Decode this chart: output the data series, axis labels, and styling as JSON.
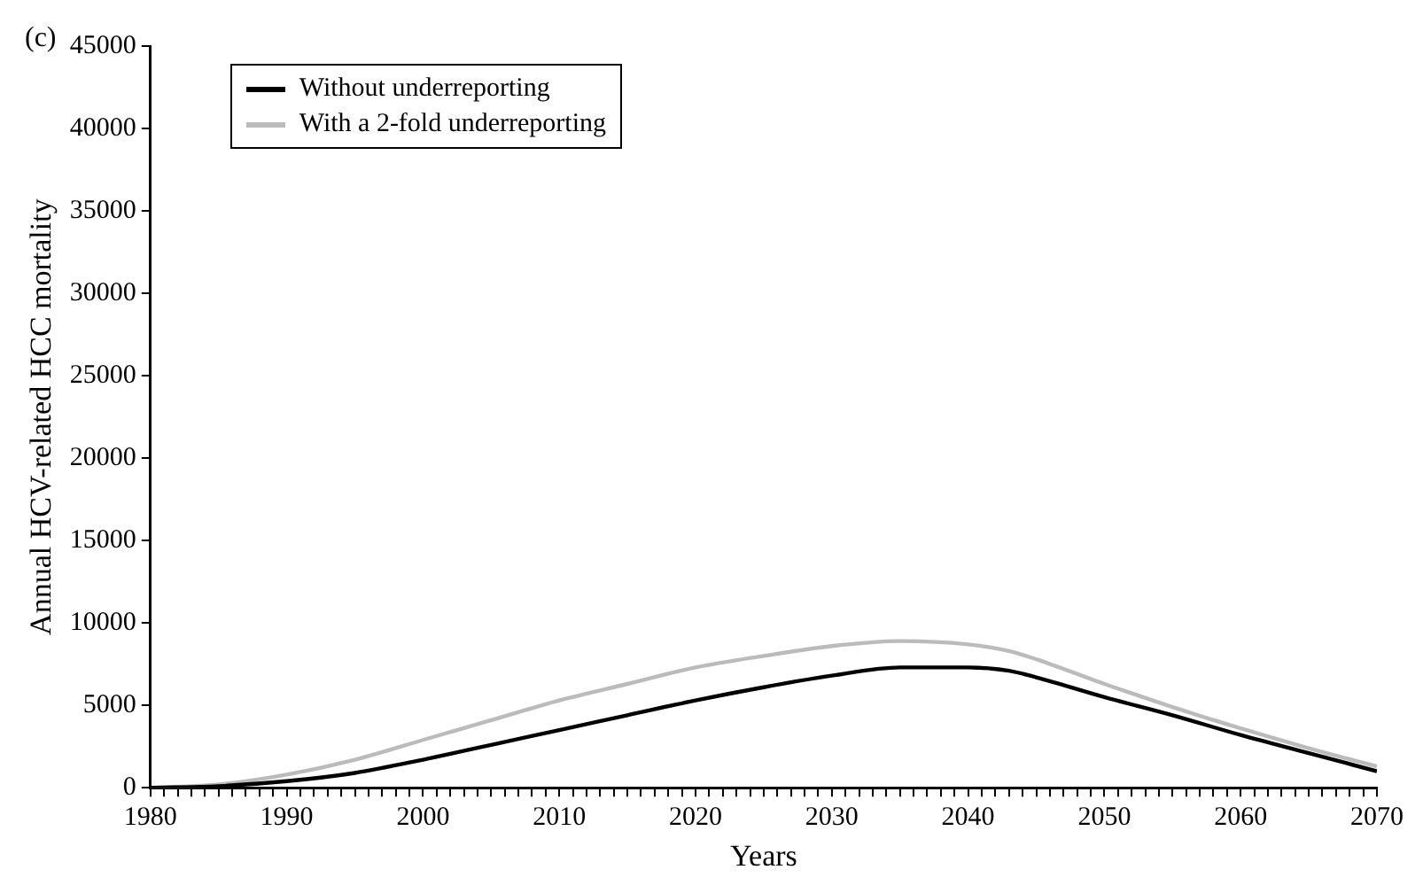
{
  "chart_data": {
    "type": "line",
    "xlabel": "Years",
    "ylabel": "Annual HCV-related HCC mortality",
    "annotations": [
      "(c)"
    ],
    "x": [
      1980,
      1985,
      1990,
      1995,
      2000,
      2005,
      2010,
      2015,
      2020,
      2025,
      2030,
      2035,
      2040,
      2043,
      2045,
      2050,
      2055,
      2060,
      2065,
      2070
    ],
    "series": [
      {
        "name": "Without underreporting",
        "color": "#000000",
        "values": [
          0,
          100,
          400,
          900,
          1700,
          2600,
          3500,
          4400,
          5300,
          6100,
          6800,
          7300,
          7300,
          7100,
          6700,
          5500,
          4400,
          3200,
          2100,
          1000
        ]
      },
      {
        "name": "With a 2-fold underreporting",
        "color": "#bbbbbb",
        "values": [
          0,
          200,
          800,
          1700,
          2900,
          4100,
          5300,
          6300,
          7300,
          8000,
          8600,
          8900,
          8700,
          8300,
          7800,
          6300,
          4900,
          3600,
          2400,
          1300
        ]
      }
    ],
    "xlim": [
      1980,
      2070
    ],
    "xticks": [
      1980,
      1990,
      2000,
      2010,
      2020,
      2030,
      2040,
      2050,
      2060,
      2070
    ],
    "ylim": [
      0,
      45000
    ],
    "yticks": [
      0,
      5000,
      10000,
      15000,
      20000,
      25000,
      30000,
      35000,
      40000,
      45000
    ],
    "grid": false,
    "legend": "top left",
    "marker": "none",
    "line_style": "solid"
  }
}
